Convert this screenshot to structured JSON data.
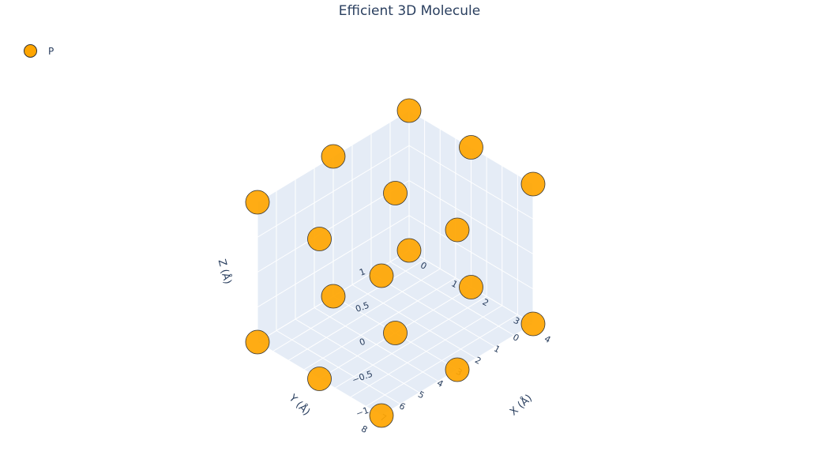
{
  "chart_data": {
    "type": "scatter3d",
    "title": "Efficient 3D Molecule",
    "legend": {
      "placement": "top-left",
      "entries": [
        {
          "name": "P",
          "color": "#ffa500"
        }
      ]
    },
    "xlabel": "X (Å)",
    "ylabel": "Y (Å)",
    "zlabel": "Z (Å)",
    "xlim": [
      0,
      4
    ],
    "ylim": [
      0,
      8
    ],
    "zlim": [
      -1,
      1
    ],
    "xticks": [
      "0",
      "1",
      "2",
      "3",
      "4"
    ],
    "yticks": [
      "0",
      "1",
      "2",
      "3",
      "4",
      "5",
      "6",
      "7",
      "8"
    ],
    "zticks": [
      "−1",
      "−0.5",
      "0",
      "0.5",
      "1"
    ],
    "grid": true,
    "series": [
      {
        "name": "P",
        "color": "#ffa500",
        "points": [
          {
            "x": 0,
            "y": 0,
            "z": -1
          },
          {
            "x": 0,
            "y": 4,
            "z": -1
          },
          {
            "x": 0,
            "y": 8,
            "z": -1
          },
          {
            "x": 2,
            "y": 0,
            "z": -1
          },
          {
            "x": 2,
            "y": 4,
            "z": -1
          },
          {
            "x": 2,
            "y": 8,
            "z": -1
          },
          {
            "x": 4,
            "y": 0,
            "z": -1
          },
          {
            "x": 4,
            "y": 4,
            "z": -1
          },
          {
            "x": 4,
            "y": 8,
            "z": -1
          },
          {
            "x": 0,
            "y": 0,
            "z": 1
          },
          {
            "x": 0,
            "y": 4,
            "z": 1
          },
          {
            "x": 0,
            "y": 8,
            "z": 1
          },
          {
            "x": 2,
            "y": 0,
            "z": 1
          },
          {
            "x": 2,
            "y": 4,
            "z": 1
          },
          {
            "x": 2,
            "y": 8,
            "z": 1
          },
          {
            "x": 4,
            "y": 0,
            "z": 1
          },
          {
            "x": 4,
            "y": 4,
            "z": 1
          },
          {
            "x": 4,
            "y": 8,
            "z": 1
          }
        ]
      }
    ]
  }
}
